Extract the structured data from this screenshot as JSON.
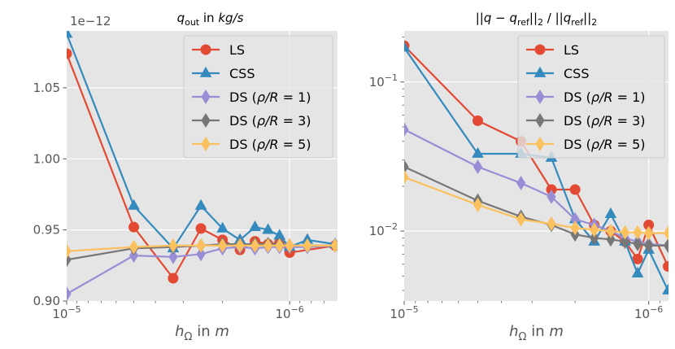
{
  "chart_data": [
    {
      "type": "line",
      "title": "q_out in kg/s",
      "xlabel": "h_Ω in m",
      "ylabel": "",
      "xscale": "log",
      "yscale": "linear",
      "xlim": [
        1e-05,
        6.1e-07
      ],
      "ylim": [
        0.9,
        1.09
      ],
      "offset_text": "1e−12",
      "xticks": [
        {
          "value": 1e-05,
          "mantissa": "10",
          "exp": "−5"
        },
        {
          "value": 1e-06,
          "mantissa": "10",
          "exp": "−6"
        }
      ],
      "yticks": [
        {
          "value": 0.9,
          "label": "0.90"
        },
        {
          "value": 0.95,
          "label": "0.95"
        },
        {
          "value": 1.0,
          "label": "1.00"
        },
        {
          "value": 1.05,
          "label": "1.05"
        }
      ],
      "legend_position": "upper right",
      "x": [
        1e-05,
        5e-06,
        3.33e-06,
        2.5e-06,
        2e-06,
        1.67e-06,
        1.43e-06,
        1.25e-06,
        1.11e-06,
        1e-06,
        8.33e-07,
        6.25e-07
      ],
      "series": [
        {
          "name": "LS",
          "color": "#E24A33",
          "marker": "circle",
          "values": [
            1.074,
            0.952,
            0.916,
            0.951,
            0.943,
            0.936,
            0.942,
            0.94,
            0.941,
            0.934,
            null,
            0.939
          ]
        },
        {
          "name": "CSS",
          "color": "#348ABD",
          "marker": "triangle",
          "values": [
            1.088,
            0.967,
            0.937,
            0.967,
            0.951,
            0.943,
            0.952,
            0.95,
            0.946,
            0.938,
            0.943,
            0.94
          ]
        },
        {
          "name": "DS (ρ/R = 1)",
          "color": "#988ED5",
          "marker": "thin-diamond",
          "values": [
            0.905,
            0.932,
            0.931,
            0.933,
            0.937,
            0.938,
            0.937,
            0.938,
            0.938,
            0.938,
            0.938,
            0.939
          ]
        },
        {
          "name": "DS (ρ/R = 3)",
          "color": "#777777",
          "marker": "thin-diamond",
          "values": [
            0.929,
            0.937,
            0.938,
            0.939,
            0.94,
            0.94,
            0.94,
            0.94,
            0.94,
            0.939,
            0.939,
            0.939
          ]
        },
        {
          "name": "DS (ρ/R = 5)",
          "color": "#FBC15E",
          "marker": "thin-diamond",
          "values": [
            0.935,
            0.938,
            0.939,
            0.939,
            0.939,
            0.939,
            0.939,
            0.939,
            0.939,
            0.939,
            0.939,
            0.939
          ]
        }
      ]
    },
    {
      "type": "line",
      "title": "||q − q_ref||₂ / ||q_ref||₂",
      "xlabel": "h_Ω in m",
      "ylabel": "",
      "xscale": "log",
      "yscale": "log",
      "xlim": [
        1e-05,
        8.3e-07
      ],
      "ylim": [
        0.0034,
        0.22
      ],
      "xticks": [
        {
          "value": 1e-05,
          "mantissa": "10",
          "exp": "−5"
        },
        {
          "value": 1e-06,
          "mantissa": "10",
          "exp": "−6"
        }
      ],
      "yticks": [
        {
          "value": 0.1,
          "mantissa": "10",
          "exp": "−1"
        },
        {
          "value": 0.01,
          "mantissa": "10",
          "exp": "−2"
        }
      ],
      "legend_position": "upper right",
      "x": [
        1e-05,
        5e-06,
        3.33e-06,
        2.5e-06,
        2e-06,
        1.67e-06,
        1.43e-06,
        1.25e-06,
        1.11e-06,
        1e-06,
        9.1e-07,
        8.33e-07
      ],
      "series": [
        {
          "name": "LS",
          "color": "#E24A33",
          "marker": "circle",
          "values": [
            0.175,
            0.055,
            0.04,
            0.019,
            0.019,
            0.011,
            0.01,
            0.0085,
            0.0065,
            0.011,
            null,
            0.0058
          ]
        },
        {
          "name": "CSS",
          "color": "#348ABD",
          "marker": "triangle",
          "values": [
            0.17,
            0.033,
            0.033,
            0.031,
            0.012,
            0.0085,
            0.013,
            0.0085,
            0.0052,
            0.0075,
            null,
            0.004
          ]
        },
        {
          "name": "DS (ρ/R = 1)",
          "color": "#988ED5",
          "marker": "thin-diamond",
          "values": [
            0.048,
            0.027,
            0.021,
            0.017,
            0.012,
            0.011,
            0.01,
            0.009,
            0.0085,
            0.0082,
            null,
            0.008
          ]
        },
        {
          "name": "DS (ρ/R = 3)",
          "color": "#777777",
          "marker": "thin-diamond",
          "values": [
            0.027,
            0.016,
            0.0125,
            0.011,
            0.0095,
            0.009,
            0.0088,
            0.0085,
            0.0082,
            0.008,
            null,
            0.008
          ]
        },
        {
          "name": "DS (ρ/R = 5)",
          "color": "#FBC15E",
          "marker": "thin-diamond",
          "values": [
            0.023,
            0.015,
            0.012,
            0.0112,
            0.0105,
            0.0102,
            0.01,
            0.0098,
            0.0098,
            0.0097,
            null,
            0.0097
          ]
        }
      ]
    }
  ]
}
